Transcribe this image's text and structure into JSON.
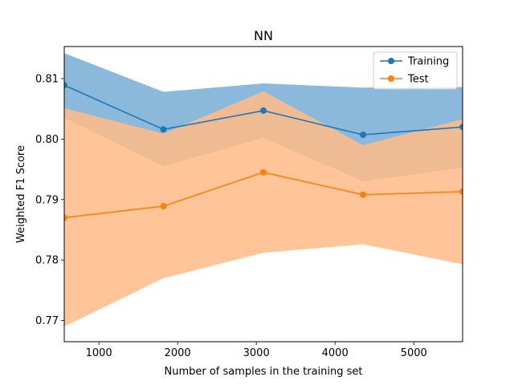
{
  "chart_data": {
    "type": "line",
    "title": "NN",
    "xlabel": "Number of samples in the training set",
    "ylabel": "Weighted F1 Score",
    "xlim": [
      560,
      5620
    ],
    "ylim": [
      0.7665,
      0.8153
    ],
    "xticks": [
      1000,
      2000,
      3000,
      4000,
      5000
    ],
    "yticks": [
      0.77,
      0.78,
      0.79,
      0.8,
      0.81
    ],
    "x": [
      560,
      1820,
      3090,
      4355,
      5620
    ],
    "grid": false,
    "legend_position": "top-right",
    "series": [
      {
        "name": "Training",
        "color": "#1f77b4",
        "band_color": "#8bb9dc",
        "values": [
          0.8089,
          0.8016,
          0.8047,
          0.8007,
          0.802
        ],
        "lower": [
          0.8035,
          0.7955,
          0.8002,
          0.793,
          0.7953
        ],
        "upper": [
          0.8142,
          0.8078,
          0.8092,
          0.8085,
          0.8086
        ]
      },
      {
        "name": "Test",
        "color": "#ff7f0e",
        "band_color": "#ffbb86",
        "values": [
          0.787,
          0.7889,
          0.7945,
          0.7908,
          0.7913
        ],
        "lower": [
          0.769,
          0.777,
          0.7812,
          0.7826,
          0.7793
        ],
        "upper": [
          0.8051,
          0.8009,
          0.8079,
          0.799,
          0.8033
        ]
      }
    ]
  }
}
